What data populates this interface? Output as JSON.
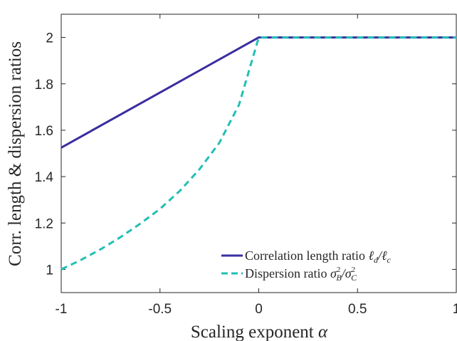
{
  "chart_data": {
    "type": "line",
    "xlabel_text": "Scaling exponent ",
    "xlabel_symbol": "α",
    "ylabel": "Corr. length & dispersion ratios",
    "xlim": [
      -1,
      1
    ],
    "ylim": [
      0.9,
      2.1
    ],
    "xticks": [
      -1,
      -0.5,
      0,
      0.5,
      1
    ],
    "xtick_labels": [
      "-1",
      "-0.5",
      "0",
      "0.5",
      "1"
    ],
    "yticks": [
      1,
      1.2,
      1.4,
      1.6,
      1.8,
      2
    ],
    "ytick_labels": [
      "1",
      "1.2",
      "1.4",
      "1.6",
      "1.8",
      "2"
    ],
    "grid": false,
    "legend_position": "bottom-right",
    "series": [
      {
        "name": "Correlation length ratio ℓd/ℓc",
        "legend_text": "Correlation length ratio ",
        "legend_math": "ℓ",
        "legend_sub1": "d",
        "legend_mid": "/ℓ",
        "legend_sub2": "c",
        "color": "#3a2ea0",
        "style": "solid",
        "x": [
          -1,
          0,
          0.5,
          1
        ],
        "y": [
          1.525,
          2.0,
          2.0,
          2.0
        ]
      },
      {
        "name": "Dispersion ratio σB²/σC²",
        "legend_text": "Dispersion ratio ",
        "legend_math": "σ",
        "legend_sub1": "B",
        "legend_mid": "/σ",
        "legend_sub2": "C",
        "color": "#22bfb4",
        "style": "dashed",
        "x": [
          -1,
          -0.9,
          -0.8,
          -0.7,
          -0.6,
          -0.5,
          -0.4,
          -0.3,
          -0.2,
          -0.1,
          0,
          0.5,
          1
        ],
        "y": [
          1.0,
          1.041,
          1.087,
          1.139,
          1.197,
          1.261,
          1.338,
          1.432,
          1.545,
          1.71,
          2.0,
          2.0,
          2.0
        ]
      }
    ]
  }
}
